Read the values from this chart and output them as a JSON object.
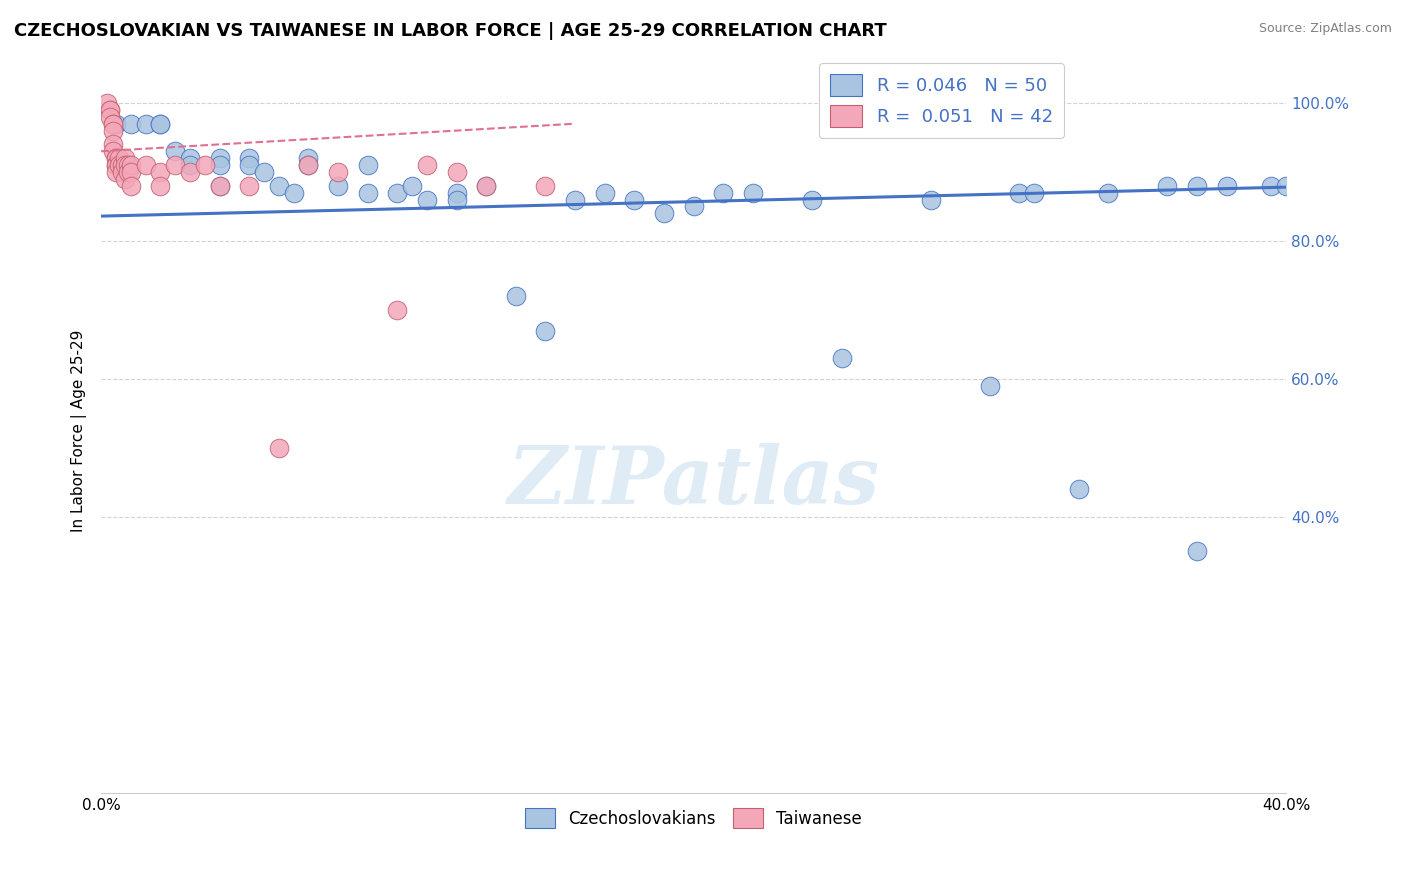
{
  "title": "CZECHOSLOVAKIAN VS TAIWANESE IN LABOR FORCE | AGE 25-29 CORRELATION CHART",
  "source": "Source: ZipAtlas.com",
  "ylabel": "In Labor Force | Age 25-29",
  "xlim": [
    0.0,
    0.4
  ],
  "ylim": [
    0.0,
    1.05
  ],
  "blue_color": "#a8c4e0",
  "pink_color": "#f4a7b9",
  "blue_line_color": "#4472c4",
  "pink_line_color": "#e07090",
  "legend_blue_R": "0.046",
  "legend_blue_N": "50",
  "legend_pink_R": "0.051",
  "legend_pink_N": "42",
  "watermark": "ZIPatlas",
  "blue_scatter_x": [
    0.005,
    0.01,
    0.015,
    0.02,
    0.02,
    0.025,
    0.03,
    0.03,
    0.04,
    0.04,
    0.04,
    0.05,
    0.05,
    0.055,
    0.06,
    0.065,
    0.07,
    0.07,
    0.08,
    0.09,
    0.09,
    0.1,
    0.105,
    0.11,
    0.12,
    0.12,
    0.13,
    0.14,
    0.15,
    0.16,
    0.17,
    0.18,
    0.19,
    0.2,
    0.21,
    0.22,
    0.24,
    0.25,
    0.28,
    0.3,
    0.31,
    0.315,
    0.33,
    0.34,
    0.36,
    0.37,
    0.37,
    0.38,
    0.395,
    0.4
  ],
  "blue_scatter_y": [
    0.97,
    0.97,
    0.97,
    0.97,
    0.97,
    0.93,
    0.92,
    0.91,
    0.92,
    0.91,
    0.88,
    0.92,
    0.91,
    0.9,
    0.88,
    0.87,
    0.92,
    0.91,
    0.88,
    0.91,
    0.87,
    0.87,
    0.88,
    0.86,
    0.87,
    0.86,
    0.88,
    0.72,
    0.67,
    0.86,
    0.87,
    0.86,
    0.84,
    0.85,
    0.87,
    0.87,
    0.86,
    0.63,
    0.86,
    0.59,
    0.87,
    0.87,
    0.44,
    0.87,
    0.88,
    0.88,
    0.35,
    0.88,
    0.88,
    0.88
  ],
  "pink_scatter_x": [
    0.002,
    0.003,
    0.003,
    0.003,
    0.004,
    0.004,
    0.004,
    0.004,
    0.004,
    0.005,
    0.005,
    0.005,
    0.005,
    0.005,
    0.006,
    0.006,
    0.007,
    0.007,
    0.008,
    0.008,
    0.008,
    0.009,
    0.009,
    0.01,
    0.01,
    0.01,
    0.015,
    0.02,
    0.02,
    0.025,
    0.03,
    0.035,
    0.04,
    0.05,
    0.06,
    0.07,
    0.08,
    0.1,
    0.11,
    0.12,
    0.13,
    0.15
  ],
  "pink_scatter_y": [
    1.0,
    0.99,
    0.99,
    0.98,
    0.97,
    0.97,
    0.96,
    0.94,
    0.93,
    0.92,
    0.92,
    0.91,
    0.91,
    0.9,
    0.92,
    0.91,
    0.91,
    0.9,
    0.92,
    0.91,
    0.89,
    0.91,
    0.9,
    0.91,
    0.9,
    0.88,
    0.91,
    0.9,
    0.88,
    0.91,
    0.9,
    0.91,
    0.88,
    0.88,
    0.5,
    0.91,
    0.9,
    0.7,
    0.91,
    0.9,
    0.88,
    0.88
  ],
  "blue_trend_x0": 0.0,
  "blue_trend_y0": 0.836,
  "blue_trend_x1": 0.4,
  "blue_trend_y1": 0.878,
  "pink_trend_x0": 0.0,
  "pink_trend_y0": 0.93,
  "pink_trend_x1": 0.16,
  "pink_trend_y1": 0.97
}
